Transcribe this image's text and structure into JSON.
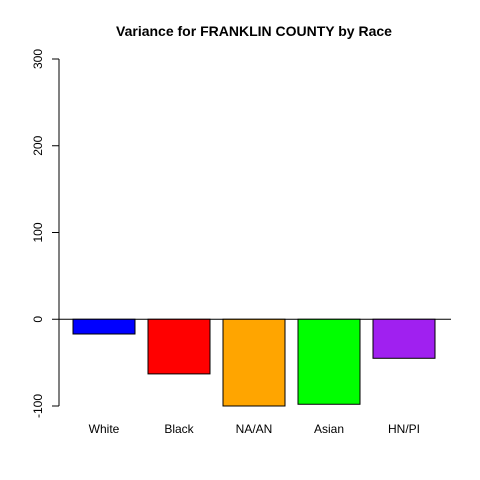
{
  "chart_data": {
    "type": "bar",
    "title": "Variance for FRANKLIN COUNTY by Race",
    "xlabel": "",
    "ylabel": "",
    "categories": [
      "White",
      "Black",
      "NA/AN",
      "Asian",
      "HN/PI"
    ],
    "values": [
      -17,
      -63,
      -100,
      -98,
      -45
    ],
    "colors": [
      "#0000ff",
      "#ff0000",
      "#ffa500",
      "#00ff00",
      "#a020f0"
    ],
    "ylim": [
      -100,
      300
    ],
    "yticks": [
      -100,
      0,
      100,
      200,
      300
    ],
    "zero_line": true,
    "grid": false,
    "legend": "none"
  }
}
